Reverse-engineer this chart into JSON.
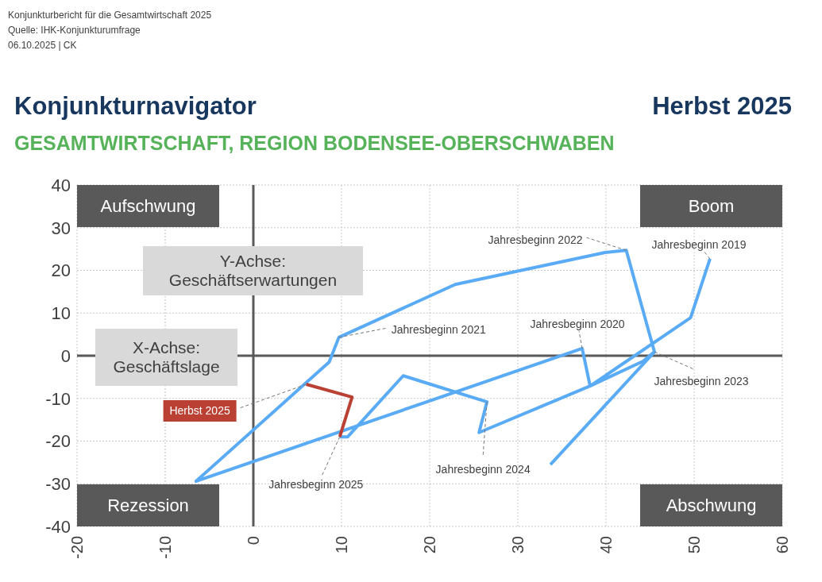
{
  "chart_data": {
    "type": "line",
    "title": "Konjunkturnavigator",
    "subtitle": "GESAMTWIRTSCHAFT, REGION BODENSEE-OBERSCHWABEN",
    "xlabel": "X-Achse: Geschäftslage",
    "ylabel": "Y-Achse: Geschäftserwartungen",
    "series": [
      {
        "color": "#5aabf5",
        "x": [
          51.8,
          49.6,
          38.2,
          37.3,
          -6.5,
          8.6,
          9.7,
          22.9,
          39.9,
          42.3,
          45.5,
          44.2,
          38.2,
          25.6,
          26.5,
          17.0,
          10.7,
          9.8
        ],
        "values": [
          22.7,
          8.9,
          -7.1,
          1.7,
          -29.4,
          -1.5,
          4.3,
          16.7,
          24.2,
          24.7,
          0.9,
          -1.3,
          -7.1,
          -18.0,
          -10.8,
          -4.7,
          -19.0,
          -19.0
        ]
      },
      {
        "color": "#5aabf5",
        "x": [
          33.7,
          45.5
        ],
        "values": [
          -25.5,
          0.9
        ]
      },
      {
        "color": "#b94033",
        "x": [
          9.8,
          11.2,
          6.0
        ],
        "values": [
          -19.0,
          -9.7,
          -6.7
        ]
      }
    ],
    "xlim": [
      -20,
      60
    ],
    "ylim": [
      -40,
      40
    ],
    "xticks": [
      -20,
      -10,
      0,
      10,
      20,
      30,
      40,
      50,
      60
    ],
    "yticks": [
      -40,
      -30,
      -20,
      -10,
      0,
      10,
      20,
      30,
      40
    ],
    "grid": true,
    "marker": "none",
    "line_style": "solid",
    "annotations": [
      "Konjunkturbericht für die Gesamtwirtschaft 2025",
      "Quelle: IHK-Konjunkturumfrage",
      "06.10.2025 | CK",
      "Herbst 2025",
      "Aufschwung",
      "Boom",
      "Rezession",
      "Abschwung",
      {
        "text": "Jahresbeginn 2019",
        "x": 51.8,
        "y": 22.7
      },
      {
        "text": "Jahresbeginn 2020",
        "x": 37.3,
        "y": 1.7
      },
      {
        "text": "Jahresbeginn 2021",
        "x": 9.7,
        "y": 4.3
      },
      {
        "text": "Jahresbeginn 2022",
        "x": 42.3,
        "y": 24.7
      },
      {
        "text": "Jahresbeginn 2023",
        "x": 45.5,
        "y": 0.9
      },
      {
        "text": "Jahresbeginn 2024",
        "x": 26.5,
        "y": -10.8
      },
      {
        "text": "Jahresbeginn 2025",
        "x": 9.8,
        "y": -19.0
      },
      {
        "text": "Herbst 2025",
        "x": 6.0,
        "y": -6.7
      }
    ]
  }
}
